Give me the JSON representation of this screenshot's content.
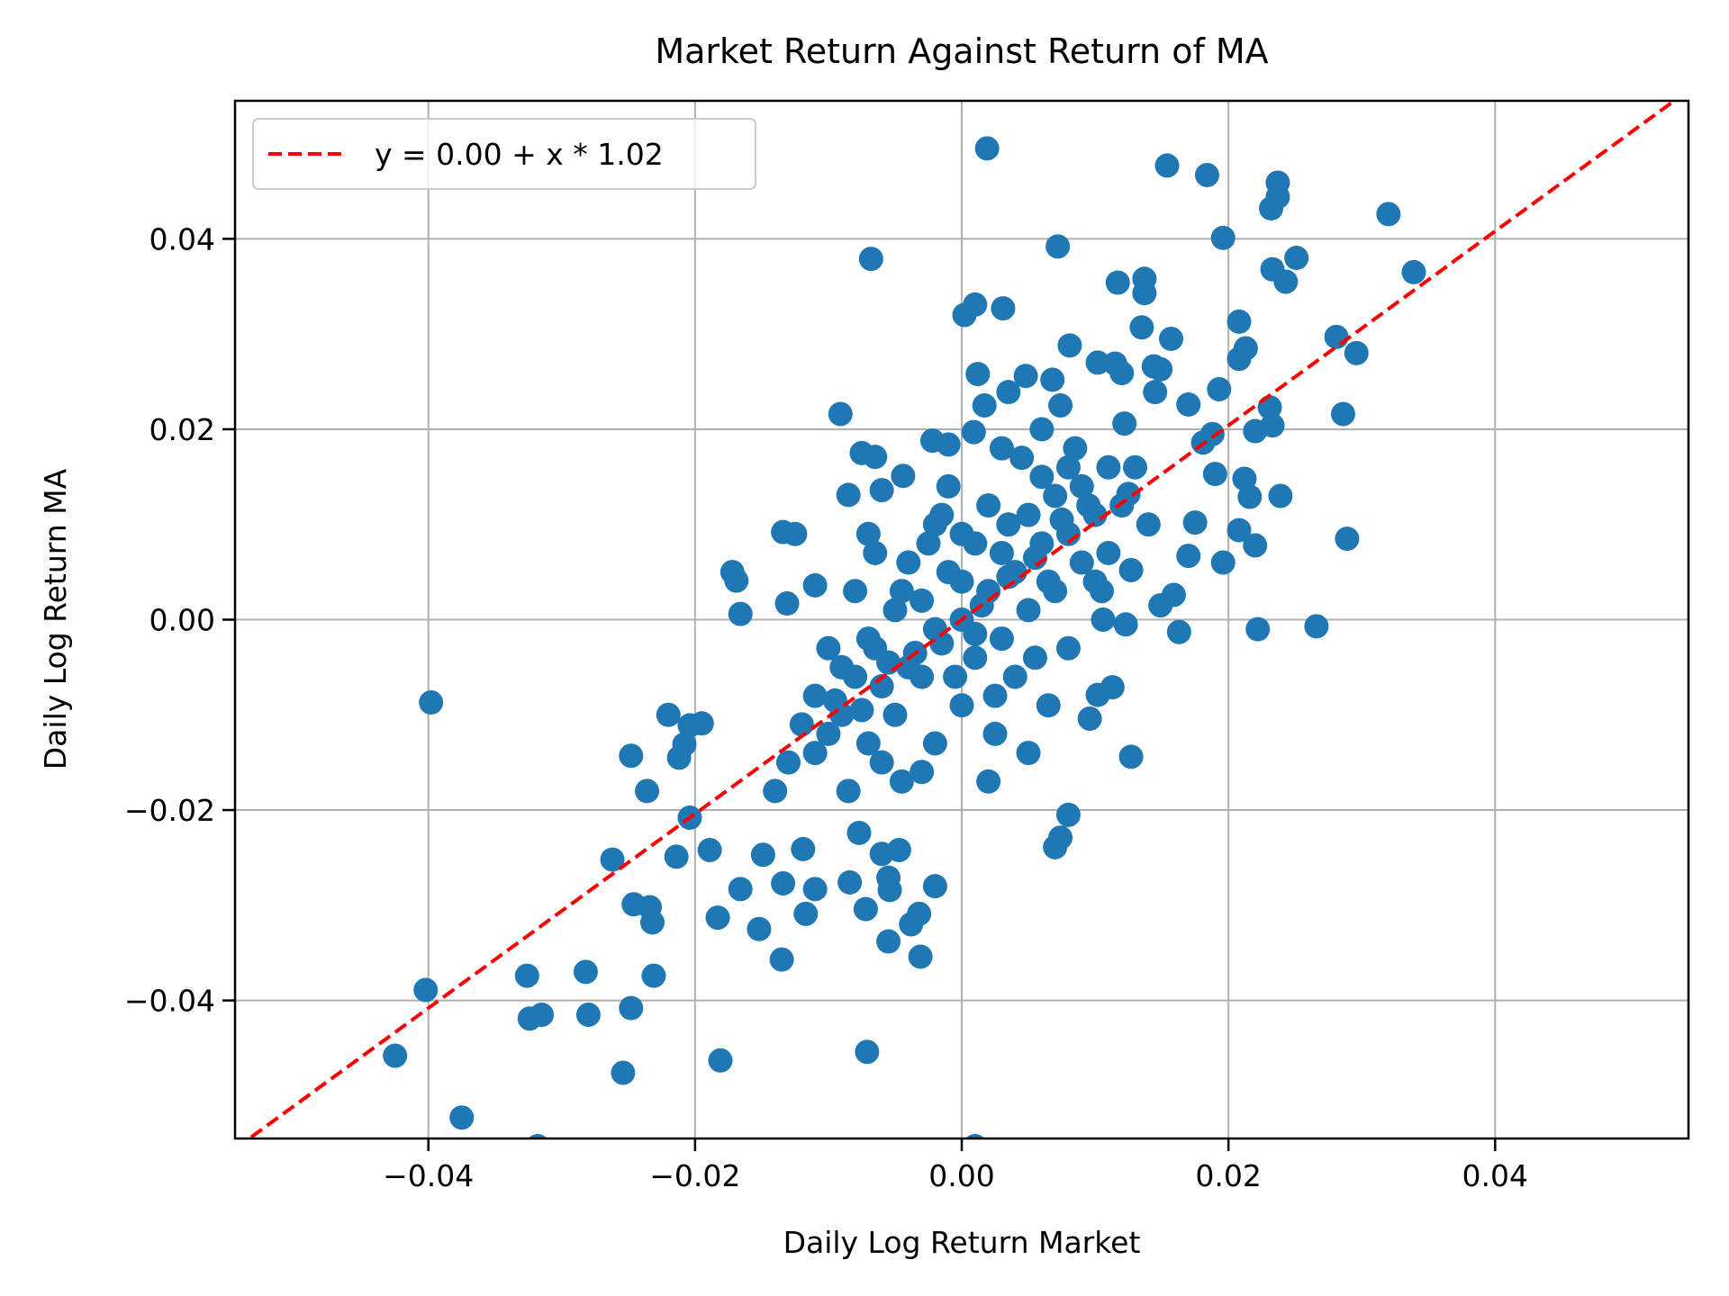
{
  "chart_data": {
    "type": "scatter",
    "title": "Market Return Against Return of MA",
    "xlabel": "Daily Log Return Market",
    "ylabel": "Daily Log Return MA",
    "xlim": [
      -0.0545,
      0.0545
    ],
    "ylim": [
      -0.0545,
      0.0545
    ],
    "xticks": [
      -0.04,
      -0.02,
      0.0,
      0.02,
      0.04
    ],
    "yticks": [
      -0.04,
      -0.02,
      0.0,
      0.02,
      0.04
    ],
    "xtick_labels": [
      "−0.04",
      "−0.02",
      "0.00",
      "0.02",
      "0.04"
    ],
    "ytick_labels": [
      "−0.04",
      "−0.02",
      "0.00",
      "0.02",
      "0.04"
    ],
    "grid": true,
    "legend_placement": "top-left",
    "colors": {
      "points": "#1f77b4",
      "fit_line": "#ff0000",
      "grid": "#b0b0b0"
    },
    "fit_line": {
      "label": "y = 0.00 + x * 1.02",
      "intercept": 0.0,
      "slope": 1.02,
      "style": "dashed"
    },
    "points": [
      [
        0.0019,
        0.0495
      ],
      [
        0.0154,
        0.0477
      ],
      [
        0.0184,
        0.0467
      ],
      [
        0.0237,
        0.0459
      ],
      [
        0.0237,
        0.0444
      ],
      [
        0.0232,
        0.0432
      ],
      [
        0.032,
        0.0426
      ],
      [
        0.0196,
        0.0401
      ],
      [
        0.0072,
        0.0392
      ],
      [
        -0.0068,
        0.0379
      ],
      [
        0.0251,
        0.038
      ],
      [
        0.0233,
        0.0368
      ],
      [
        0.0339,
        0.0365
      ],
      [
        0.0243,
        0.0355
      ],
      [
        0.0137,
        0.0358
      ],
      [
        0.0117,
        0.0354
      ],
      [
        0.0137,
        0.0343
      ],
      [
        0.001,
        0.0331
      ],
      [
        0.0031,
        0.0327
      ],
      [
        0.0002,
        0.032
      ],
      [
        0.0208,
        0.0313
      ],
      [
        0.0135,
        0.0307
      ],
      [
        0.0157,
        0.0295
      ],
      [
        0.0281,
        0.0297
      ],
      [
        0.0213,
        0.0285
      ],
      [
        0.0081,
        0.0288
      ],
      [
        0.0296,
        0.028
      ],
      [
        0.0208,
        0.0274
      ],
      [
        0.0102,
        0.027
      ],
      [
        0.0115,
        0.0269
      ],
      [
        0.0144,
        0.0266
      ],
      [
        0.0012,
        0.0258
      ],
      [
        0.0048,
        0.0256
      ],
      [
        0.0068,
        0.0252
      ],
      [
        0.012,
        0.0259
      ],
      [
        0.0149,
        0.0263
      ],
      [
        0.0035,
        0.0239
      ],
      [
        0.0145,
        0.0239
      ],
      [
        0.0193,
        0.0242
      ],
      [
        0.017,
        0.0226
      ],
      [
        0.0017,
        0.0225
      ],
      [
        0.0074,
        0.0225
      ],
      [
        0.0231,
        0.0223
      ],
      [
        0.0286,
        0.0216
      ],
      [
        -0.0091,
        0.0216
      ],
      [
        0.0233,
        0.0204
      ],
      [
        0.022,
        0.0198
      ],
      [
        0.0188,
        0.0195
      ],
      [
        0.0009,
        0.0197
      ],
      [
        0.0122,
        0.0206
      ],
      [
        -0.0022,
        0.0188
      ],
      [
        -0.001,
        0.0184
      ],
      [
        0.0181,
        0.0186
      ],
      [
        -0.0075,
        0.0175
      ],
      [
        -0.0065,
        0.0171
      ],
      [
        0.019,
        0.0153
      ],
      [
        0.0212,
        0.0148
      ],
      [
        -0.0044,
        0.0151
      ],
      [
        0.0216,
        0.0129
      ],
      [
        0.0239,
        0.013
      ],
      [
        -0.0085,
        0.0131
      ],
      [
        -0.006,
        0.0136
      ],
      [
        0.0125,
        0.0132
      ],
      [
        -0.0134,
        0.0092
      ],
      [
        -0.0125,
        0.009
      ],
      [
        0.0208,
        0.0094
      ],
      [
        0.0289,
        0.0085
      ],
      [
        0.0175,
        0.0102
      ],
      [
        0.022,
        0.0078
      ],
      [
        0.0196,
        0.006
      ],
      [
        0.0127,
        0.0052
      ],
      [
        0.017,
        0.0067
      ],
      [
        -0.0172,
        0.005
      ],
      [
        -0.0169,
        0.0041
      ],
      [
        -0.011,
        0.0036
      ],
      [
        -0.0166,
        0.0006
      ],
      [
        -0.0131,
        0.0017
      ],
      [
        0.0159,
        0.0026
      ],
      [
        0.0149,
        0.0015
      ],
      [
        0.0106,
        0.0
      ],
      [
        0.0123,
        -0.0005
      ],
      [
        0.0222,
        -0.001
      ],
      [
        0.0266,
        -0.0007
      ],
      [
        0.0163,
        -0.0013
      ],
      [
        -0.0398,
        -0.0087
      ],
      [
        -0.022,
        -0.01
      ],
      [
        -0.0204,
        -0.0111
      ],
      [
        -0.0195,
        -0.0109
      ],
      [
        -0.0208,
        -0.0131
      ],
      [
        -0.0212,
        -0.0145
      ],
      [
        -0.0248,
        -0.0143
      ],
      [
        -0.0236,
        -0.018
      ],
      [
        0.0127,
        -0.0144
      ],
      [
        0.0113,
        -0.0071
      ],
      [
        0.0102,
        -0.0079
      ],
      [
        0.0096,
        -0.0104
      ],
      [
        -0.0204,
        -0.0208
      ],
      [
        -0.0214,
        -0.0249
      ],
      [
        -0.0189,
        -0.0242
      ],
      [
        -0.0262,
        -0.0252
      ],
      [
        -0.0246,
        -0.0299
      ],
      [
        -0.0234,
        -0.0302
      ],
      [
        -0.0232,
        -0.0318
      ],
      [
        -0.0183,
        -0.0313
      ],
      [
        -0.0166,
        -0.0283
      ],
      [
        -0.0152,
        -0.0325
      ],
      [
        -0.0149,
        -0.0247
      ],
      [
        -0.0134,
        -0.0277
      ],
      [
        -0.0135,
        -0.0357
      ],
      [
        -0.0117,
        -0.0309
      ],
      [
        -0.011,
        -0.0283
      ],
      [
        -0.0119,
        -0.0241
      ],
      [
        -0.0084,
        -0.0276
      ],
      [
        -0.0072,
        -0.0304
      ],
      [
        -0.0055,
        -0.0338
      ],
      [
        -0.0055,
        -0.0271
      ],
      [
        -0.0054,
        -0.0284
      ],
      [
        -0.0038,
        -0.032
      ],
      [
        -0.0032,
        -0.0309
      ],
      [
        -0.0031,
        -0.0354
      ],
      [
        -0.002,
        -0.028
      ],
      [
        -0.0047,
        -0.0242
      ],
      [
        -0.006,
        -0.0246
      ],
      [
        -0.0077,
        -0.0224
      ],
      [
        0.007,
        -0.0239
      ],
      [
        0.0074,
        -0.0229
      ],
      [
        0.008,
        -0.0205
      ],
      [
        -0.0326,
        -0.0374
      ],
      [
        -0.0402,
        -0.0389
      ],
      [
        -0.0282,
        -0.037
      ],
      [
        -0.0231,
        -0.0374
      ],
      [
        -0.0248,
        -0.0408
      ],
      [
        -0.0324,
        -0.0419
      ],
      [
        -0.0315,
        -0.0415
      ],
      [
        -0.028,
        -0.0415
      ],
      [
        -0.0425,
        -0.0458
      ],
      [
        -0.0254,
        -0.0476
      ],
      [
        -0.0181,
        -0.0463
      ],
      [
        -0.0071,
        -0.0454
      ],
      [
        -0.0375,
        -0.0523
      ],
      [
        -0.0318,
        -0.0553
      ],
      [
        0.001,
        -0.0553
      ],
      [
        0.0,
        0.0
      ],
      [
        0.002,
        0.003
      ],
      [
        -0.002,
        -0.001
      ],
      [
        0.004,
        0.005
      ],
      [
        -0.004,
        -0.005
      ],
      [
        0.006,
        0.008
      ],
      [
        -0.006,
        -0.007
      ],
      [
        0.008,
        0.009
      ],
      [
        -0.008,
        -0.006
      ],
      [
        0.01,
        0.011
      ],
      [
        -0.01,
        -0.012
      ],
      [
        0.001,
        -0.004
      ],
      [
        -0.001,
        0.005
      ],
      [
        0.003,
        -0.002
      ],
      [
        -0.003,
        0.002
      ],
      [
        0.005,
        0.001
      ],
      [
        -0.005,
        0.001
      ],
      [
        0.007,
        0.003
      ],
      [
        -0.007,
        -0.002
      ],
      [
        0.009,
        0.014
      ],
      [
        -0.009,
        -0.01
      ],
      [
        0.011,
        0.007
      ],
      [
        -0.011,
        -0.008
      ],
      [
        0.013,
        0.016
      ],
      [
        -0.013,
        -0.015
      ],
      [
        0.0,
        0.009
      ],
      [
        0.0,
        -0.009
      ],
      [
        0.002,
        0.012
      ],
      [
        -0.002,
        -0.013
      ],
      [
        0.004,
        -0.006
      ],
      [
        -0.004,
        0.006
      ],
      [
        0.006,
        0.015
      ],
      [
        -0.006,
        -0.015
      ],
      [
        0.008,
        -0.003
      ],
      [
        -0.008,
        0.003
      ],
      [
        0.01,
        0.004
      ],
      [
        -0.01,
        -0.003
      ],
      [
        0.012,
        0.012
      ],
      [
        -0.012,
        -0.011
      ],
      [
        0.014,
        0.01
      ],
      [
        -0.014,
        -0.018
      ],
      [
        0.003,
        0.007
      ],
      [
        -0.003,
        -0.006
      ],
      [
        0.005,
        0.011
      ],
      [
        -0.005,
        -0.01
      ],
      [
        0.007,
        0.013
      ],
      [
        -0.007,
        -0.013
      ],
      [
        0.009,
        0.006
      ],
      [
        -0.009,
        -0.005
      ],
      [
        0.011,
        0.016
      ],
      [
        -0.011,
        -0.014
      ],
      [
        0.0015,
        0.0015
      ],
      [
        -0.0015,
        -0.0025
      ],
      [
        0.0035,
        0.0045
      ],
      [
        -0.0035,
        -0.0035
      ],
      [
        0.0055,
        0.0065
      ],
      [
        -0.0055,
        -0.0045
      ],
      [
        0.0075,
        0.0105
      ],
      [
        -0.0075,
        -0.0095
      ],
      [
        0.0095,
        0.012
      ],
      [
        -0.0095,
        -0.0085
      ],
      [
        0.0025,
        -0.008
      ],
      [
        -0.0025,
        0.008
      ],
      [
        0.0045,
        0.017
      ],
      [
        -0.0045,
        -0.017
      ],
      [
        0.0065,
        -0.009
      ],
      [
        -0.0065,
        0.007
      ],
      [
        0.0085,
        0.018
      ],
      [
        -0.0085,
        -0.018
      ],
      [
        0.0105,
        0.003
      ],
      [
        0.0,
        0.004
      ],
      [
        0.001,
        -0.0015
      ],
      [
        -0.0005,
        -0.006
      ],
      [
        0.0035,
        0.01
      ],
      [
        -0.0045,
        0.003
      ],
      [
        0.0055,
        -0.004
      ],
      [
        -0.0015,
        0.011
      ],
      [
        0.0025,
        -0.012
      ],
      [
        0.0065,
        0.004
      ],
      [
        -0.0065,
        -0.003
      ],
      [
        0.005,
        -0.014
      ],
      [
        -0.003,
        -0.016
      ],
      [
        0.002,
        -0.017
      ],
      [
        -0.001,
        0.014
      ],
      [
        0.008,
        0.016
      ],
      [
        0.006,
        0.02
      ],
      [
        -0.002,
        0.01
      ],
      [
        0.003,
        0.018
      ],
      [
        0.001,
        0.008
      ],
      [
        -0.007,
        0.009
      ]
    ]
  }
}
